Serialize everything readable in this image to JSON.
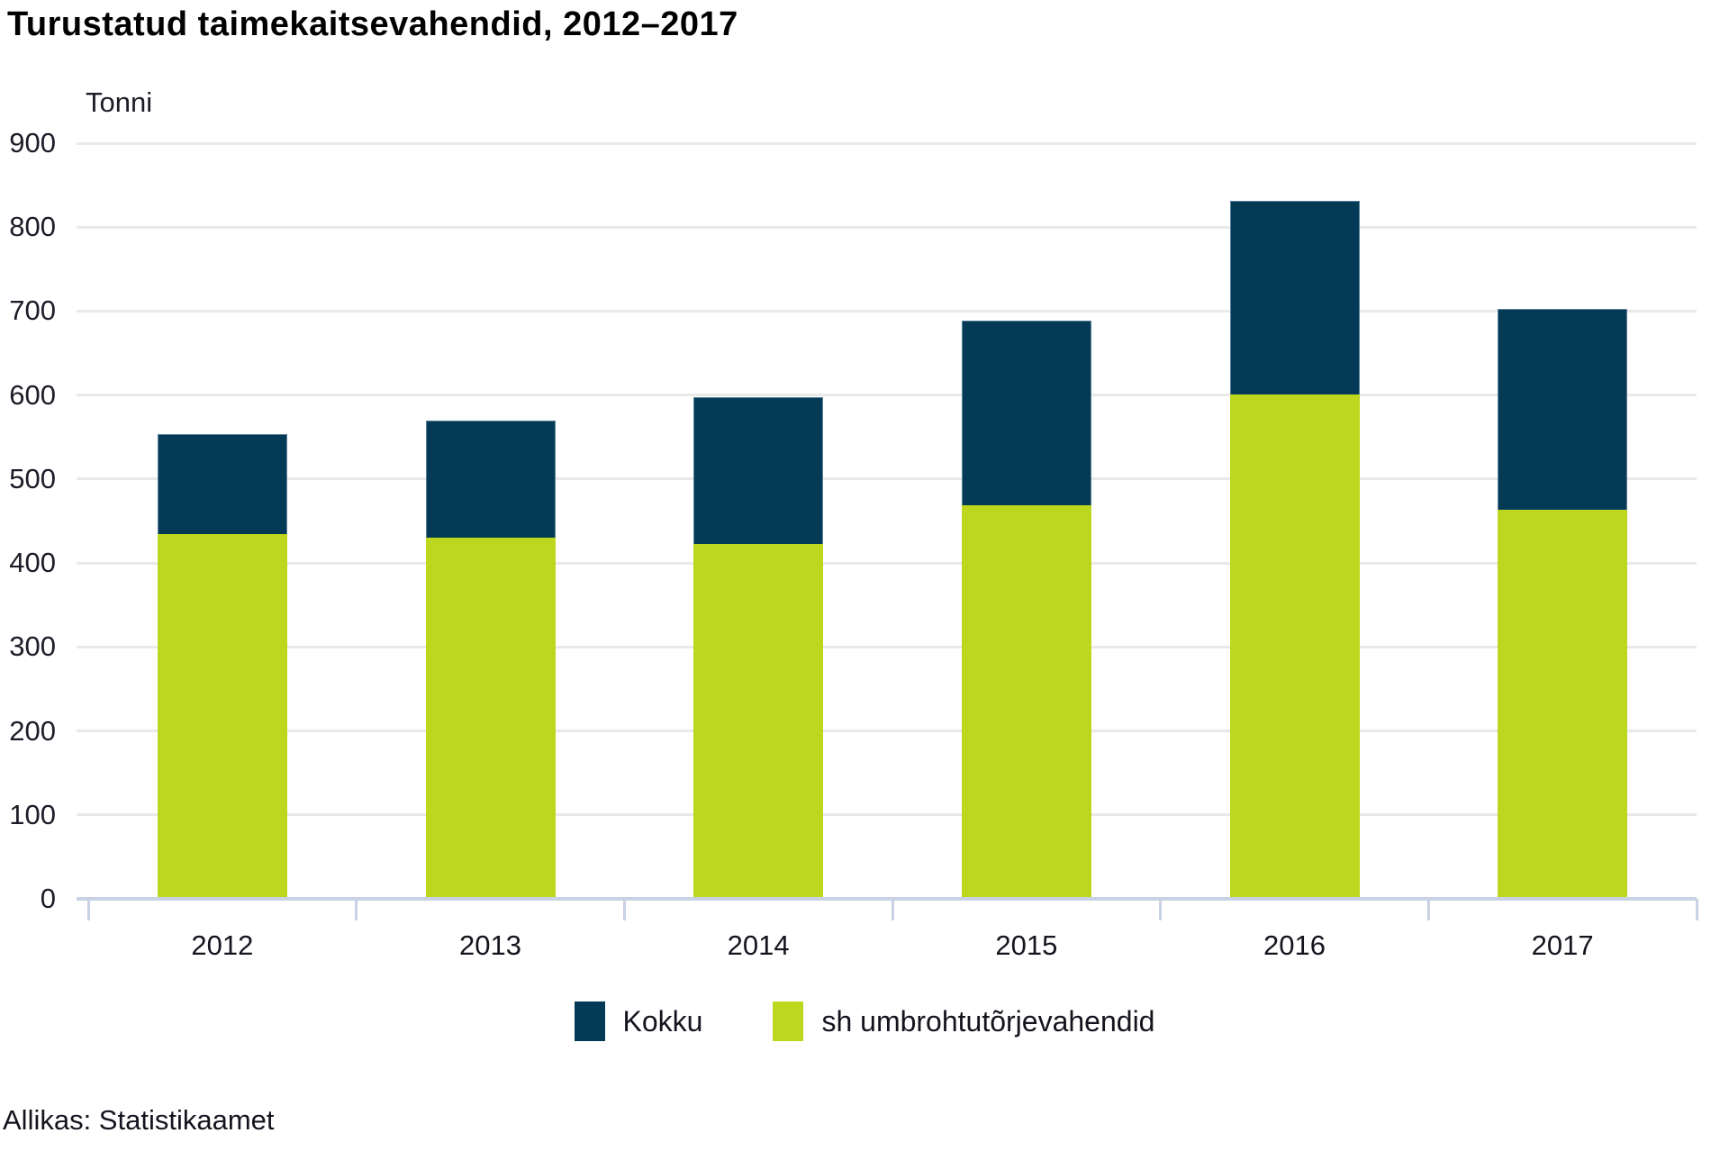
{
  "title": "Turustatud taimekaitsevahendid, 2012–2017",
  "source": "Allikas: Statistikaamet",
  "colors": {
    "kokku": "#043a56",
    "herbicides": "#bdd61e",
    "gridline": "#e9e9e9",
    "axis": "#c9d2e4",
    "text": "#1a1a1a"
  },
  "chart_data": {
    "type": "bar",
    "title": "Turustatud taimekaitsevahendid, 2012–2017",
    "ylabel": "Tonni",
    "xlabel": "",
    "categories": [
      "2012",
      "2013",
      "2014",
      "2015",
      "2016",
      "2017"
    ],
    "series": [
      {
        "name": "Kokku",
        "color": "#043a56",
        "values": [
          553,
          570,
          598,
          689,
          831,
          703
        ]
      },
      {
        "name": "sh umbrohtutõrjevahendid",
        "color": "#bdd61e",
        "values": [
          434,
          430,
          423,
          469,
          601,
          463
        ]
      }
    ],
    "ylim": [
      0,
      900
    ],
    "ytick_step": 100,
    "grid": true,
    "legend_position": "bottom",
    "note": "Series overlap from zero: Kokku drawn behind full height, herbicides in front"
  }
}
